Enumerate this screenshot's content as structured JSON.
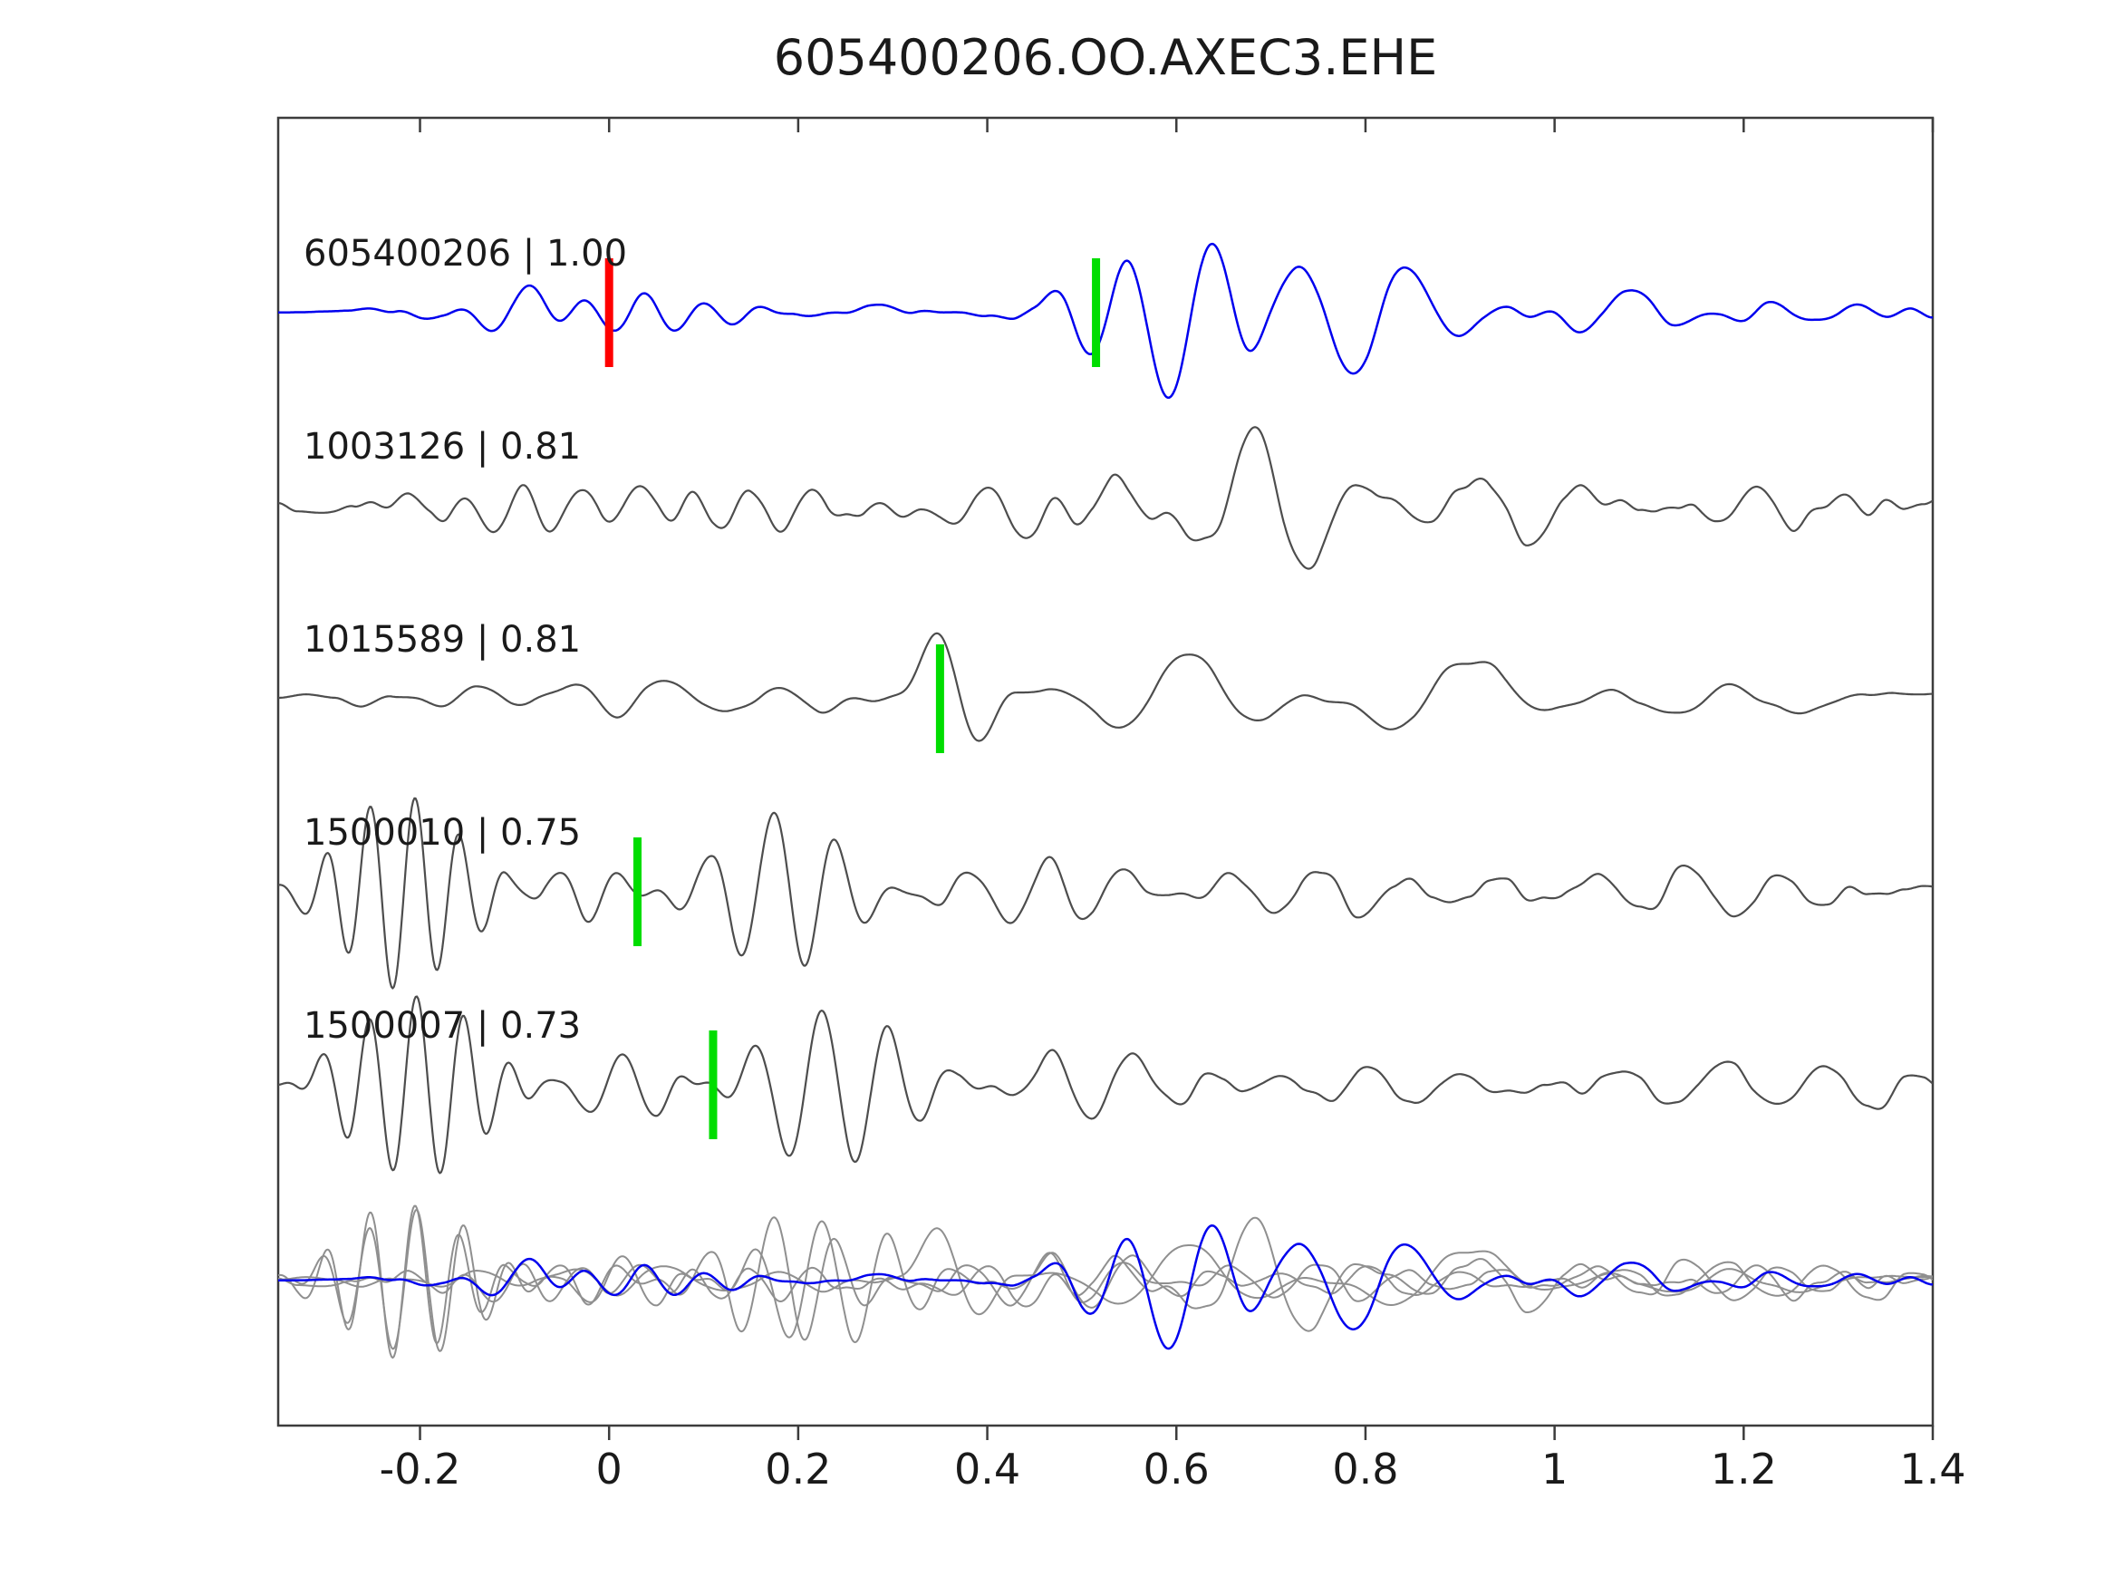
{
  "title": "605400206.OO.AXEC3.EHE",
  "colors": {
    "target_trace": "#0000ee",
    "match_trace": "#4d4d4d",
    "overlay_gray": "#8f8f8f",
    "pick_marker": "#00dd00",
    "origin_marker": "#ff0000",
    "axis": "#3c3c3c",
    "text": "#1a1a1a",
    "background": "#ffffff"
  },
  "chart_data": {
    "type": "line",
    "title": "605400206.OO.AXEC3.EHE",
    "xlabel": "",
    "ylabel": "",
    "grid": false,
    "legend": false,
    "x_range": [
      -0.35,
      1.4
    ],
    "x_ticks": [
      -0.2,
      0,
      0.2,
      0.4,
      0.6,
      0.8,
      1,
      1.2,
      1.4
    ],
    "x_tick_labels": [
      "-0.2",
      "0",
      "0.2",
      "0.4",
      "0.6",
      "0.8",
      "1",
      "1.2",
      "1.4"
    ],
    "rows": 6,
    "overlay_row": 5,
    "traces": [
      {
        "id": "605400206",
        "correlation": 1.0,
        "label": "605400206 | 1.00",
        "color": "#0000ee",
        "row": 0,
        "markers": [
          {
            "x": 0.0,
            "color": "#ff0000"
          },
          {
            "x": 0.515,
            "color": "#00dd00"
          }
        ],
        "synth": {
          "noise": {
            "amp": 8,
            "step": 0.025,
            "seed": 11
          },
          "bursts": [
            {
              "t0": -0.35,
              "t1": 0.5,
              "amp": 12,
              "freq": 16,
              "ph": 0.3
            },
            {
              "t0": -0.17,
              "t1": -0.04,
              "amp": 26,
              "freq": 7.5,
              "ph": 3.4
            },
            {
              "t0": -0.05,
              "t1": 0.1,
              "amp": 16,
              "freq": 12,
              "ph": 1.2
            },
            {
              "t0": 0.12,
              "t1": 0.32,
              "amp": 12,
              "freq": 14,
              "ph": 2.0
            },
            {
              "t0": 0.44,
              "t1": 0.56,
              "amp": 40,
              "freq": 9,
              "ph": 0.5
            },
            {
              "t0": 0.48,
              "t1": 0.72,
              "amp": 95,
              "freq": 10,
              "ph": 4.0
            },
            {
              "t0": 0.6,
              "t1": 0.98,
              "amp": 60,
              "freq": 8.5,
              "ph": 1.0
            },
            {
              "t0": 0.95,
              "t1": 1.2,
              "amp": 22,
              "freq": 9,
              "ph": 0.6
            },
            {
              "t0": 1.15,
              "t1": 1.4,
              "amp": 12,
              "freq": 11,
              "ph": 2.4
            }
          ]
        }
      },
      {
        "id": "1003126",
        "correlation": 0.81,
        "label": "1003126 | 0.81",
        "color": "#4d4d4d",
        "row": 1,
        "markers": [],
        "synth": {
          "noise": {
            "amp": 12,
            "step": 0.02,
            "seed": 22
          },
          "bursts": [
            {
              "t0": -0.35,
              "t1": 0.25,
              "amp": 24,
              "freq": 16,
              "ph": 0.7
            },
            {
              "t0": 0.0,
              "t1": 0.35,
              "amp": 28,
              "freq": 14,
              "ph": 1.5
            },
            {
              "t0": 0.3,
              "t1": 0.55,
              "amp": 26,
              "freq": 12,
              "ph": 0.4
            },
            {
              "t0": 0.45,
              "t1": 0.62,
              "amp": 36,
              "freq": 10,
              "ph": 2.2
            },
            {
              "t0": 0.55,
              "t1": 0.85,
              "amp": 88,
              "freq": 8.5,
              "ph": 0.9
            },
            {
              "t0": 0.78,
              "t1": 1.1,
              "amp": 38,
              "freq": 9,
              "ph": 0.1
            },
            {
              "t0": 1.05,
              "t1": 1.4,
              "amp": 24,
              "freq": 11,
              "ph": 2.8
            }
          ]
        }
      },
      {
        "id": "1015589",
        "correlation": 0.81,
        "label": "1015589 | 0.81",
        "color": "#4d4d4d",
        "row": 2,
        "markers": [
          {
            "x": 0.35,
            "color": "#00dd00"
          }
        ],
        "synth": {
          "noise": {
            "amp": 10,
            "step": 0.03,
            "seed": 33
          },
          "bursts": [
            {
              "t0": -0.35,
              "t1": 0.28,
              "amp": 16,
              "freq": 10,
              "ph": 1.1
            },
            {
              "t0": 0.05,
              "t1": 0.32,
              "amp": 20,
              "freq": 9,
              "ph": 0.3
            },
            {
              "t0": 0.3,
              "t1": 0.43,
              "amp": 98,
              "freq": 7,
              "ph": 0.0
            },
            {
              "t0": 0.42,
              "t1": 0.78,
              "amp": 52,
              "freq": 6.5,
              "ph": 0.0
            },
            {
              "t0": 0.72,
              "t1": 1.08,
              "amp": 46,
              "freq": 5.5,
              "ph": 1.2
            },
            {
              "t0": 1.02,
              "t1": 1.4,
              "amp": 20,
              "freq": 7,
              "ph": 0.5
            }
          ]
        }
      },
      {
        "id": "1500010",
        "correlation": 0.75,
        "label": "1500010 | 0.75",
        "color": "#4d4d4d",
        "row": 3,
        "markers": [
          {
            "x": 0.03,
            "color": "#00dd00"
          }
        ],
        "synth": {
          "noise": {
            "amp": 9,
            "step": 0.02,
            "seed": 44
          },
          "bursts": [
            {
              "t0": -0.36,
              "t1": -0.08,
              "amp": 108,
              "freq": 21,
              "ph": 0.0
            },
            {
              "t0": -0.12,
              "t1": 0.06,
              "amp": 34,
              "freq": 16,
              "ph": 1.0
            },
            {
              "t0": 0.03,
              "t1": 0.33,
              "amp": 88,
              "freq": 15,
              "ph": 0.6
            },
            {
              "t0": 0.3,
              "t1": 0.62,
              "amp": 38,
              "freq": 12,
              "ph": 1.8
            },
            {
              "t0": 0.55,
              "t1": 0.92,
              "amp": 30,
              "freq": 11,
              "ph": 0.4
            },
            {
              "t0": 0.85,
              "t1": 1.4,
              "amp": 24,
              "freq": 10,
              "ph": 2.2
            }
          ]
        }
      },
      {
        "id": "1500007",
        "correlation": 0.73,
        "label": "1500007 | 0.73",
        "color": "#4d4d4d",
        "row": 4,
        "markers": [
          {
            "x": 0.11,
            "color": "#00dd00"
          }
        ],
        "synth": {
          "noise": {
            "amp": 9,
            "step": 0.02,
            "seed": 55
          },
          "bursts": [
            {
              "t0": -0.36,
              "t1": -0.05,
              "amp": 100,
              "freq": 20,
              "ph": 0.8
            },
            {
              "t0": -0.08,
              "t1": 0.12,
              "amp": 40,
              "freq": 13,
              "ph": 0.2
            },
            {
              "t0": 0.08,
              "t1": 0.4,
              "amp": 92,
              "freq": 14,
              "ph": 1.4
            },
            {
              "t0": 0.36,
              "t1": 0.68,
              "amp": 40,
              "freq": 11,
              "ph": 0.6
            },
            {
              "t0": 0.62,
              "t1": 1.0,
              "amp": 26,
              "freq": 10,
              "ph": 2.5
            },
            {
              "t0": 0.95,
              "t1": 1.4,
              "amp": 20,
              "freq": 9,
              "ph": 1.0
            },
            {
              "t0": 1.24,
              "t1": 1.4,
              "amp": 30,
              "freq": 8,
              "ph": 0.0
            }
          ]
        }
      }
    ]
  }
}
